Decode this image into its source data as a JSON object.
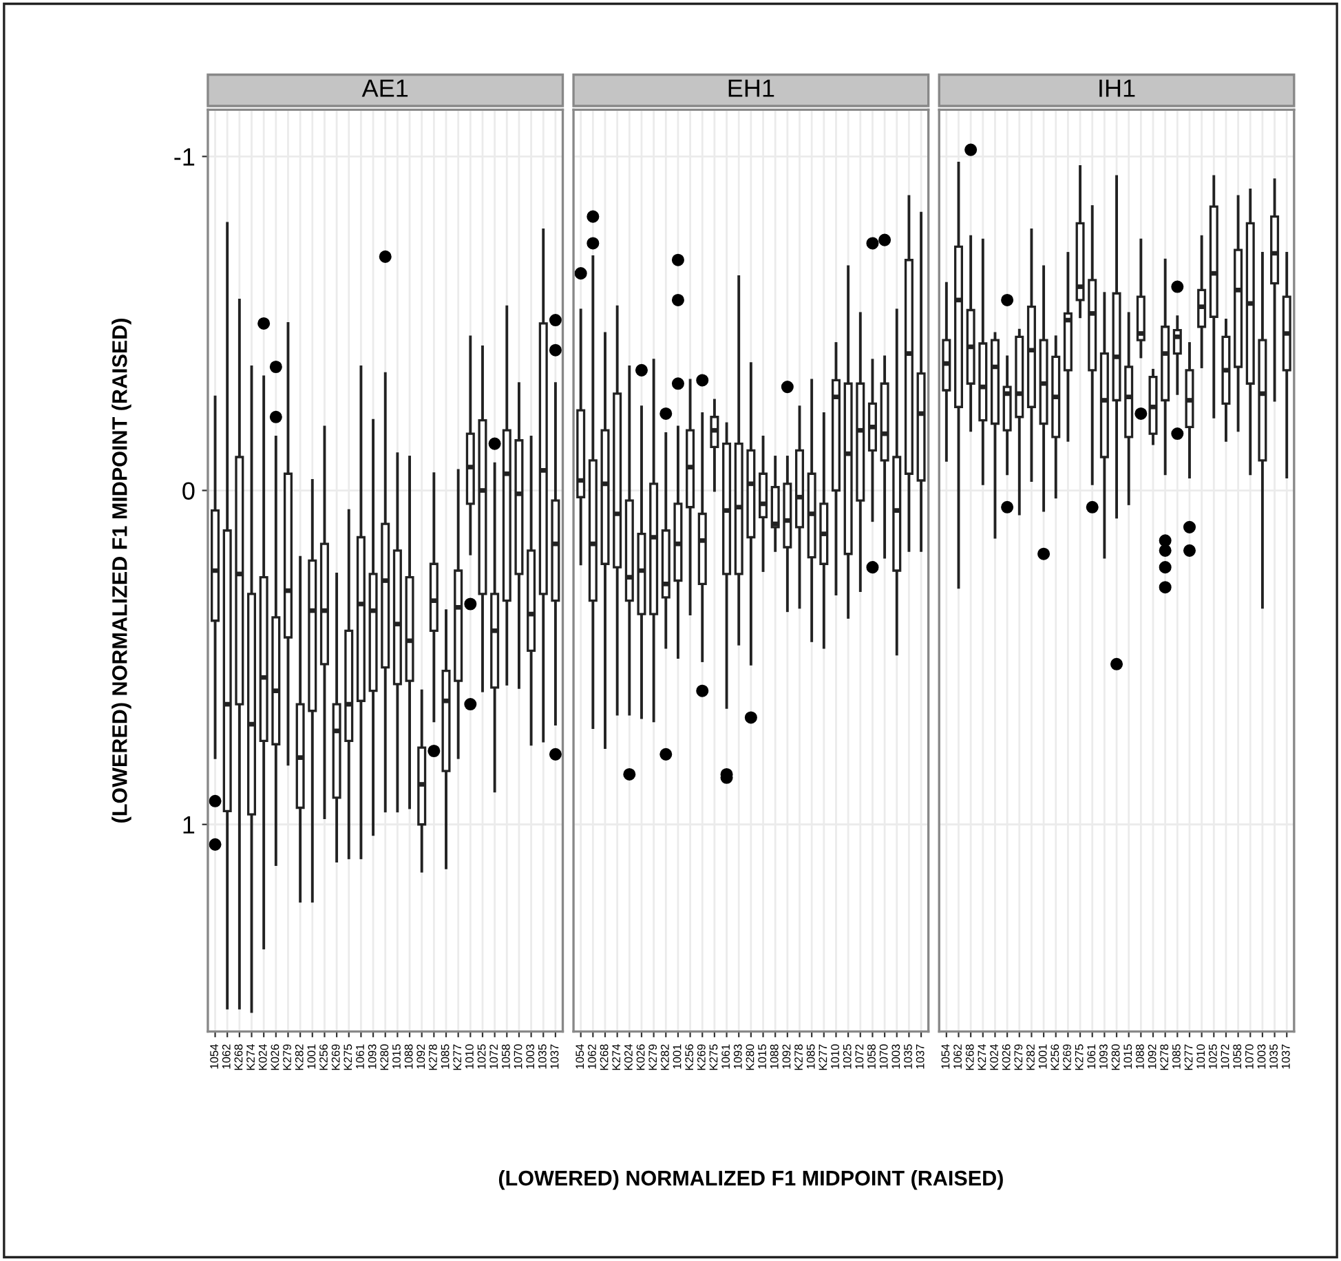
{
  "chart_data": [
    {
      "type": "box",
      "title": "AE1",
      "ylabel": "(LOWERED) NORMALIZED F1 MIDPOINT (RAISED)",
      "categories": [
        "1054",
        "1062",
        "K268",
        "K274",
        "K024",
        "K026",
        "K279",
        "K282",
        "1001",
        "K256",
        "K269",
        "K275",
        "1061",
        "1093",
        "K280",
        "1015",
        "1088",
        "1092",
        "K278",
        "1085",
        "K277",
        "1010",
        "1025",
        "1072",
        "1058",
        "1070",
        "1003",
        "1035",
        "1037"
      ],
      "boxes": [
        {
          "high": 0.8,
          "q1": 0.06,
          "median": 0.24,
          "q3": 0.39,
          "low": -0.28,
          "outliers": [
            0.93,
            1.06
          ]
        },
        {
          "high": 1.55,
          "q1": 0.12,
          "median": 0.64,
          "q3": 0.96,
          "low": -0.8
        },
        {
          "high": 1.55,
          "q1": -0.1,
          "median": 0.25,
          "q3": 0.64,
          "low": -0.57
        },
        {
          "high": 1.56,
          "q1": 0.31,
          "median": 0.7,
          "q3": 0.97,
          "low": -0.37
        },
        {
          "high": 1.37,
          "q1": 0.26,
          "median": 0.56,
          "q3": 0.75,
          "low": -0.34,
          "outliers": [
            -0.5
          ]
        },
        {
          "high": 1.12,
          "q1": 0.38,
          "median": 0.6,
          "q3": 0.76,
          "low": -0.16,
          "outliers": [
            -0.37,
            -0.22
          ]
        },
        {
          "high": 0.82,
          "q1": -0.05,
          "median": 0.3,
          "q3": 0.44,
          "low": -0.5
        },
        {
          "high": 1.23,
          "q1": 0.64,
          "median": 0.8,
          "q3": 0.95,
          "low": 0.2
        },
        {
          "high": 1.23,
          "q1": 0.21,
          "median": 0.36,
          "q3": 0.66,
          "low": -0.03
        },
        {
          "high": 0.98,
          "q1": 0.16,
          "median": 0.36,
          "q3": 0.52,
          "low": -0.19
        },
        {
          "high": 1.11,
          "q1": 0.64,
          "median": 0.72,
          "q3": 0.92,
          "low": 0.25
        },
        {
          "high": 1.1,
          "q1": 0.42,
          "median": 0.64,
          "q3": 0.75,
          "low": 0.06
        },
        {
          "high": 1.1,
          "q1": 0.14,
          "median": 0.34,
          "q3": 0.63,
          "low": -0.37
        },
        {
          "high": 1.03,
          "q1": 0.25,
          "median": 0.36,
          "q3": 0.6,
          "low": -0.21
        },
        {
          "high": 0.96,
          "q1": 0.1,
          "median": 0.27,
          "q3": 0.53,
          "low": -0.35,
          "outliers": [
            -0.7
          ]
        },
        {
          "high": 0.96,
          "q1": 0.18,
          "median": 0.4,
          "q3": 0.58,
          "low": -0.11
        },
        {
          "high": 0.95,
          "q1": 0.26,
          "median": 0.45,
          "q3": 0.57,
          "low": -0.1
        },
        {
          "high": 1.14,
          "q1": 0.77,
          "median": 0.88,
          "q3": 1.0,
          "low": 0.6
        },
        {
          "high": 0.69,
          "q1": 0.22,
          "median": 0.33,
          "q3": 0.42,
          "low": -0.05,
          "outliers": [
            0.78
          ]
        },
        {
          "high": 1.13,
          "q1": 0.54,
          "median": 0.63,
          "q3": 0.84,
          "low": 0.36
        },
        {
          "high": 0.8,
          "q1": 0.24,
          "median": 0.35,
          "q3": 0.57,
          "low": -0.06
        },
        {
          "high": 0.19,
          "q1": -0.17,
          "median": -0.07,
          "q3": 0.04,
          "low": -0.46,
          "outliers": [
            0.34,
            0.64
          ]
        },
        {
          "high": 0.6,
          "q1": -0.21,
          "median": 0.0,
          "q3": 0.31,
          "low": -0.43
        },
        {
          "high": 0.9,
          "q1": 0.31,
          "median": 0.42,
          "q3": 0.59,
          "low": -0.08,
          "outliers": [
            -0.14
          ]
        },
        {
          "high": 0.58,
          "q1": -0.18,
          "median": -0.05,
          "q3": 0.33,
          "low": -0.55
        },
        {
          "high": 0.59,
          "q1": -0.15,
          "median": 0.01,
          "q3": 0.25,
          "low": -0.32
        },
        {
          "high": 0.76,
          "q1": 0.18,
          "median": 0.37,
          "q3": 0.48,
          "low": -0.16
        },
        {
          "high": 0.75,
          "q1": -0.5,
          "median": -0.06,
          "q3": 0.31,
          "low": -0.78
        },
        {
          "high": 0.7,
          "q1": 0.03,
          "median": 0.16,
          "q3": 0.33,
          "low": -0.32,
          "outliers": [
            0.79,
            -0.51,
            -0.42
          ]
        }
      ],
      "ylim": [
        1.62,
        -1.14
      ],
      "yticks": [
        -1,
        0,
        1
      ],
      "grid": true
    },
    {
      "type": "box",
      "title": "EH1",
      "xlabel": "(LOWERED) NORMALIZED F1 MIDPOINT (RAISED)",
      "categories": [
        "1054",
        "1062",
        "K268",
        "K274",
        "K024",
        "K026",
        "K279",
        "K282",
        "1001",
        "K256",
        "K269",
        "K275",
        "1061",
        "1093",
        "K280",
        "1015",
        "1088",
        "1092",
        "K278",
        "1085",
        "K277",
        "1010",
        "1025",
        "1072",
        "1058",
        "1070",
        "1003",
        "1035",
        "1037"
      ],
      "boxes": [
        {
          "high": 0.22,
          "q1": -0.24,
          "median": -0.03,
          "q3": 0.02,
          "low": -0.54,
          "outliers": [
            -0.65
          ]
        },
        {
          "high": 0.71,
          "q1": -0.09,
          "median": 0.16,
          "q3": 0.33,
          "low": -0.7,
          "outliers": [
            -0.82,
            -0.74
          ]
        },
        {
          "high": 0.77,
          "q1": -0.18,
          "median": -0.02,
          "q3": 0.22,
          "low": -0.47
        },
        {
          "high": 0.67,
          "q1": -0.29,
          "median": 0.07,
          "q3": 0.23,
          "low": -0.55
        },
        {
          "high": 0.67,
          "q1": 0.03,
          "median": 0.26,
          "q3": 0.33,
          "low": -0.37,
          "outliers": [
            0.85
          ]
        },
        {
          "high": 0.68,
          "q1": 0.13,
          "median": 0.24,
          "q3": 0.37,
          "low": -0.25,
          "outliers": [
            -0.36
          ]
        },
        {
          "high": 0.69,
          "q1": -0.02,
          "median": 0.14,
          "q3": 0.37,
          "low": -0.39
        },
        {
          "high": 0.47,
          "q1": 0.12,
          "median": 0.28,
          "q3": 0.32,
          "low": -0.17,
          "outliers": [
            0.79,
            -0.23
          ]
        },
        {
          "high": 0.5,
          "q1": 0.04,
          "median": 0.16,
          "q3": 0.27,
          "low": -0.19,
          "outliers": [
            -0.69,
            -0.57,
            -0.32
          ]
        },
        {
          "high": 0.37,
          "q1": -0.18,
          "median": -0.07,
          "q3": 0.05,
          "low": -0.33
        },
        {
          "high": 0.51,
          "q1": 0.07,
          "median": 0.15,
          "q3": 0.28,
          "low": -0.23,
          "outliers": [
            0.6,
            -0.33
          ]
        },
        {
          "high": 0.0,
          "q1": -0.22,
          "median": -0.18,
          "q3": -0.13,
          "low": -0.27
        },
        {
          "high": 0.65,
          "q1": -0.14,
          "median": 0.06,
          "q3": 0.25,
          "low": -0.2,
          "outliers": [
            0.85,
            0.86
          ]
        },
        {
          "high": 0.46,
          "q1": -0.14,
          "median": 0.05,
          "q3": 0.25,
          "low": -0.64
        },
        {
          "high": 0.52,
          "q1": -0.12,
          "median": -0.02,
          "q3": 0.14,
          "low": -0.38,
          "outliers": [
            0.68
          ]
        },
        {
          "high": 0.24,
          "q1": -0.05,
          "median": 0.04,
          "q3": 0.08,
          "low": -0.16
        },
        {
          "high": 0.18,
          "q1": -0.01,
          "median": 0.1,
          "q3": 0.11,
          "low": -0.1
        },
        {
          "high": 0.36,
          "q1": -0.02,
          "median": 0.09,
          "q3": 0.17,
          "low": -0.1,
          "outliers": [
            -0.31
          ]
        },
        {
          "high": 0.35,
          "q1": -0.12,
          "median": 0.02,
          "q3": 0.11,
          "low": -0.25
        },
        {
          "high": 0.45,
          "q1": -0.05,
          "median": 0.07,
          "q3": 0.2,
          "low": -0.33
        },
        {
          "high": 0.47,
          "q1": 0.04,
          "median": 0.13,
          "q3": 0.22,
          "low": -0.23
        },
        {
          "high": 0.31,
          "q1": -0.33,
          "median": -0.28,
          "q3": 0.0,
          "low": -0.44
        },
        {
          "high": 0.38,
          "q1": -0.32,
          "median": -0.11,
          "q3": 0.19,
          "low": -0.67
        },
        {
          "high": 0.3,
          "q1": -0.32,
          "median": -0.18,
          "q3": 0.03,
          "low": -0.53
        },
        {
          "high": 0.09,
          "q1": -0.26,
          "median": -0.19,
          "q3": -0.12,
          "low": -0.39,
          "outliers": [
            0.23,
            -0.74
          ]
        },
        {
          "high": 0.2,
          "q1": -0.32,
          "median": -0.17,
          "q3": -0.09,
          "low": -0.4,
          "outliers": [
            -0.75
          ]
        },
        {
          "high": 0.49,
          "q1": -0.1,
          "median": 0.06,
          "q3": 0.24,
          "low": -0.54
        },
        {
          "high": 0.18,
          "q1": -0.69,
          "median": -0.41,
          "q3": -0.05,
          "low": -0.88
        },
        {
          "high": 0.18,
          "q1": -0.35,
          "median": -0.23,
          "q3": -0.03,
          "low": -0.83
        }
      ],
      "ylim": [
        1.62,
        -1.14
      ],
      "yticks": [
        -1,
        0,
        1
      ],
      "grid": true,
      "tick_labels": "x"
    },
    {
      "type": "box",
      "title": "IH1",
      "categories": [
        "1054",
        "1062",
        "K268",
        "K274",
        "K024",
        "K026",
        "K279",
        "K282",
        "1001",
        "K256",
        "K269",
        "K275",
        "1061",
        "1093",
        "K280",
        "1015",
        "1088",
        "1092",
        "K278",
        "1085",
        "K277",
        "1010",
        "1025",
        "1072",
        "1058",
        "1070",
        "1003",
        "1035",
        "1037"
      ],
      "boxes": [
        {
          "high": -0.09,
          "q1": -0.45,
          "median": -0.38,
          "q3": -0.3,
          "low": -0.62
        },
        {
          "high": 0.29,
          "q1": -0.73,
          "median": -0.57,
          "q3": -0.25,
          "low": -0.98
        },
        {
          "high": -0.18,
          "q1": -0.54,
          "median": -0.43,
          "q3": -0.32,
          "low": -0.76,
          "outliers": [
            -1.02
          ]
        },
        {
          "high": -0.02,
          "q1": -0.44,
          "median": -0.31,
          "q3": -0.21,
          "low": -0.75
        },
        {
          "high": 0.14,
          "q1": -0.45,
          "median": -0.37,
          "q3": -0.2,
          "low": -0.47
        },
        {
          "high": -0.05,
          "q1": -0.31,
          "median": -0.29,
          "q3": -0.18,
          "low": -0.4,
          "outliers": [
            0.05,
            -0.57
          ]
        },
        {
          "high": 0.07,
          "q1": -0.46,
          "median": -0.29,
          "q3": -0.22,
          "low": -0.48
        },
        {
          "high": -0.03,
          "q1": -0.55,
          "median": -0.42,
          "q3": -0.25,
          "low": -0.78
        },
        {
          "high": 0.06,
          "q1": -0.45,
          "median": -0.32,
          "q3": -0.2,
          "low": -0.67,
          "outliers": [
            0.19
          ]
        },
        {
          "high": 0.02,
          "q1": -0.4,
          "median": -0.28,
          "q3": -0.16,
          "low": -0.46
        },
        {
          "high": -0.15,
          "q1": -0.53,
          "median": -0.51,
          "q3": -0.36,
          "low": -0.71
        },
        {
          "high": -0.52,
          "q1": -0.8,
          "median": -0.61,
          "q3": -0.57,
          "low": -0.97
        },
        {
          "high": -0.02,
          "q1": -0.63,
          "median": -0.53,
          "q3": -0.36,
          "low": -0.85,
          "outliers": [
            0.05
          ]
        },
        {
          "high": 0.2,
          "q1": -0.41,
          "median": -0.27,
          "q3": -0.1,
          "low": -0.59
        },
        {
          "high": 0.08,
          "q1": -0.59,
          "median": -0.4,
          "q3": -0.27,
          "low": -0.94,
          "outliers": [
            0.52
          ]
        },
        {
          "high": 0.04,
          "q1": -0.37,
          "median": -0.28,
          "q3": -0.16,
          "low": -0.53
        },
        {
          "high": -0.4,
          "q1": -0.58,
          "median": -0.47,
          "q3": -0.45,
          "low": -0.75,
          "outliers": [
            -0.23
          ]
        },
        {
          "high": -0.14,
          "q1": -0.34,
          "median": -0.25,
          "q3": -0.17,
          "low": -0.36
        },
        {
          "high": -0.05,
          "q1": -0.49,
          "median": -0.41,
          "q3": -0.27,
          "low": -0.69,
          "outliers": [
            0.15,
            0.18,
            0.23,
            0.29
          ]
        },
        {
          "high": -0.29,
          "q1": -0.48,
          "median": -0.46,
          "q3": -0.41,
          "low": -0.52,
          "outliers": [
            -0.61,
            -0.17
          ]
        },
        {
          "high": -0.04,
          "q1": -0.36,
          "median": -0.27,
          "q3": -0.19,
          "low": -0.44,
          "outliers": [
            0.11,
            0.18
          ]
        },
        {
          "high": -0.37,
          "q1": -0.6,
          "median": -0.55,
          "q3": -0.49,
          "low": -0.76
        },
        {
          "high": -0.22,
          "q1": -0.85,
          "median": -0.65,
          "q3": -0.52,
          "low": -0.94
        },
        {
          "high": -0.15,
          "q1": -0.46,
          "median": -0.36,
          "q3": -0.26,
          "low": -0.51
        },
        {
          "high": -0.18,
          "q1": -0.72,
          "median": -0.6,
          "q3": -0.37,
          "low": -0.88
        },
        {
          "high": -0.05,
          "q1": -0.8,
          "median": -0.56,
          "q3": -0.32,
          "low": -0.9
        },
        {
          "high": 0.35,
          "q1": -0.45,
          "median": -0.29,
          "q3": -0.09,
          "low": -0.71
        },
        {
          "high": -0.27,
          "q1": -0.82,
          "median": -0.71,
          "q3": -0.62,
          "low": -0.93
        },
        {
          "high": -0.04,
          "q1": -0.58,
          "median": -0.47,
          "q3": -0.36,
          "low": -0.71
        }
      ],
      "ylim": [
        1.62,
        -1.14
      ],
      "yticks": [
        -1,
        0,
        1
      ],
      "grid": true,
      "tick_labels": "x"
    }
  ]
}
